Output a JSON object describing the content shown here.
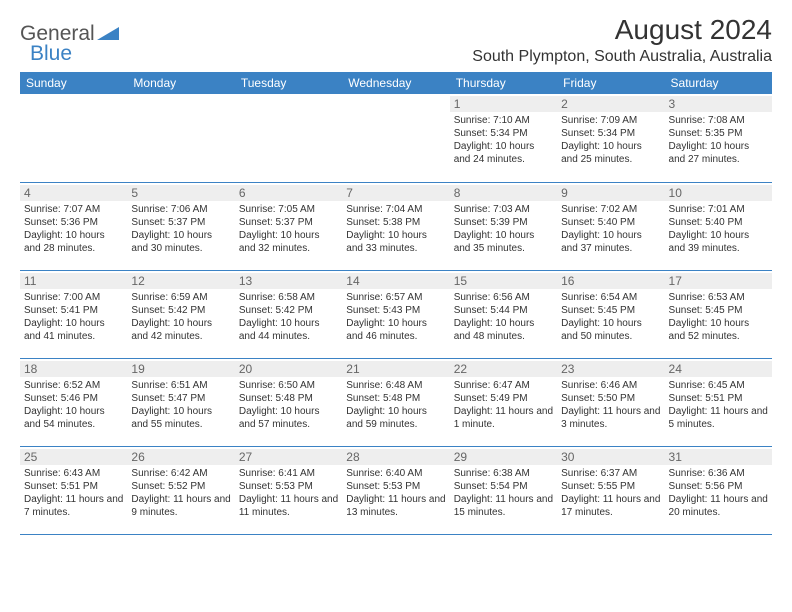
{
  "logo": {
    "text1": "General",
    "text2": "Blue"
  },
  "title": "August 2024",
  "title_fontsize": 28,
  "location": "South Plympton, South Australia, Australia",
  "location_fontsize": 16,
  "colors": {
    "header_bg": "#3b82c4",
    "header_text": "#ffffff",
    "daynum_bg": "#eeeeee",
    "daynum_text": "#666666",
    "border": "#3b82c4",
    "body_text": "#333333",
    "page_bg": "#ffffff"
  },
  "dayHeaders": [
    "Sunday",
    "Monday",
    "Tuesday",
    "Wednesday",
    "Thursday",
    "Friday",
    "Saturday"
  ],
  "weeks": [
    [
      null,
      null,
      null,
      null,
      {
        "n": "1",
        "sr": "7:10 AM",
        "ss": "5:34 PM",
        "dl": "10 hours and 24 minutes."
      },
      {
        "n": "2",
        "sr": "7:09 AM",
        "ss": "5:34 PM",
        "dl": "10 hours and 25 minutes."
      },
      {
        "n": "3",
        "sr": "7:08 AM",
        "ss": "5:35 PM",
        "dl": "10 hours and 27 minutes."
      }
    ],
    [
      {
        "n": "4",
        "sr": "7:07 AM",
        "ss": "5:36 PM",
        "dl": "10 hours and 28 minutes."
      },
      {
        "n": "5",
        "sr": "7:06 AM",
        "ss": "5:37 PM",
        "dl": "10 hours and 30 minutes."
      },
      {
        "n": "6",
        "sr": "7:05 AM",
        "ss": "5:37 PM",
        "dl": "10 hours and 32 minutes."
      },
      {
        "n": "7",
        "sr": "7:04 AM",
        "ss": "5:38 PM",
        "dl": "10 hours and 33 minutes."
      },
      {
        "n": "8",
        "sr": "7:03 AM",
        "ss": "5:39 PM",
        "dl": "10 hours and 35 minutes."
      },
      {
        "n": "9",
        "sr": "7:02 AM",
        "ss": "5:40 PM",
        "dl": "10 hours and 37 minutes."
      },
      {
        "n": "10",
        "sr": "7:01 AM",
        "ss": "5:40 PM",
        "dl": "10 hours and 39 minutes."
      }
    ],
    [
      {
        "n": "11",
        "sr": "7:00 AM",
        "ss": "5:41 PM",
        "dl": "10 hours and 41 minutes."
      },
      {
        "n": "12",
        "sr": "6:59 AM",
        "ss": "5:42 PM",
        "dl": "10 hours and 42 minutes."
      },
      {
        "n": "13",
        "sr": "6:58 AM",
        "ss": "5:42 PM",
        "dl": "10 hours and 44 minutes."
      },
      {
        "n": "14",
        "sr": "6:57 AM",
        "ss": "5:43 PM",
        "dl": "10 hours and 46 minutes."
      },
      {
        "n": "15",
        "sr": "6:56 AM",
        "ss": "5:44 PM",
        "dl": "10 hours and 48 minutes."
      },
      {
        "n": "16",
        "sr": "6:54 AM",
        "ss": "5:45 PM",
        "dl": "10 hours and 50 minutes."
      },
      {
        "n": "17",
        "sr": "6:53 AM",
        "ss": "5:45 PM",
        "dl": "10 hours and 52 minutes."
      }
    ],
    [
      {
        "n": "18",
        "sr": "6:52 AM",
        "ss": "5:46 PM",
        "dl": "10 hours and 54 minutes."
      },
      {
        "n": "19",
        "sr": "6:51 AM",
        "ss": "5:47 PM",
        "dl": "10 hours and 55 minutes."
      },
      {
        "n": "20",
        "sr": "6:50 AM",
        "ss": "5:48 PM",
        "dl": "10 hours and 57 minutes."
      },
      {
        "n": "21",
        "sr": "6:48 AM",
        "ss": "5:48 PM",
        "dl": "10 hours and 59 minutes."
      },
      {
        "n": "22",
        "sr": "6:47 AM",
        "ss": "5:49 PM",
        "dl": "11 hours and 1 minute."
      },
      {
        "n": "23",
        "sr": "6:46 AM",
        "ss": "5:50 PM",
        "dl": "11 hours and 3 minutes."
      },
      {
        "n": "24",
        "sr": "6:45 AM",
        "ss": "5:51 PM",
        "dl": "11 hours and 5 minutes."
      }
    ],
    [
      {
        "n": "25",
        "sr": "6:43 AM",
        "ss": "5:51 PM",
        "dl": "11 hours and 7 minutes."
      },
      {
        "n": "26",
        "sr": "6:42 AM",
        "ss": "5:52 PM",
        "dl": "11 hours and 9 minutes."
      },
      {
        "n": "27",
        "sr": "6:41 AM",
        "ss": "5:53 PM",
        "dl": "11 hours and 11 minutes."
      },
      {
        "n": "28",
        "sr": "6:40 AM",
        "ss": "5:53 PM",
        "dl": "11 hours and 13 minutes."
      },
      {
        "n": "29",
        "sr": "6:38 AM",
        "ss": "5:54 PM",
        "dl": "11 hours and 15 minutes."
      },
      {
        "n": "30",
        "sr": "6:37 AM",
        "ss": "5:55 PM",
        "dl": "11 hours and 17 minutes."
      },
      {
        "n": "31",
        "sr": "6:36 AM",
        "ss": "5:56 PM",
        "dl": "11 hours and 20 minutes."
      }
    ]
  ],
  "labels": {
    "sunrise": "Sunrise:",
    "sunset": "Sunset:",
    "daylight": "Daylight:"
  }
}
